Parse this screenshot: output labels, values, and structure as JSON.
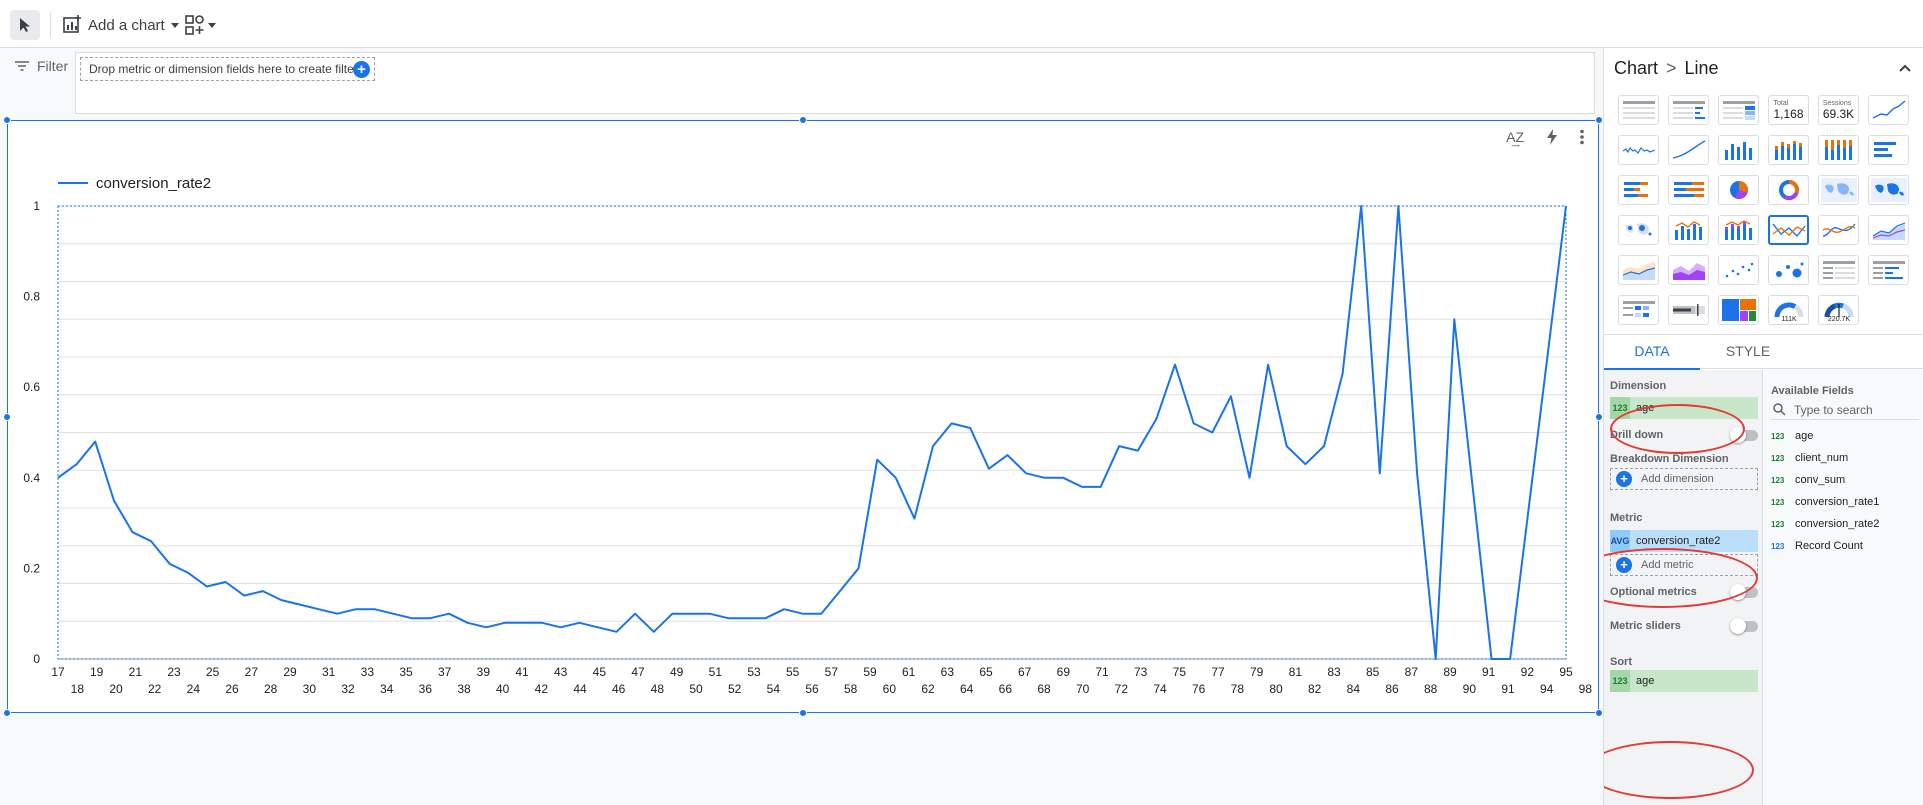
{
  "toolbar": {
    "add_chart_label": "Add a chart"
  },
  "filter": {
    "label": "Filter",
    "drop_hint": "Drop metric or dimension fields here to create filters"
  },
  "chart": {
    "sort_az_label": "A͢Z"
  },
  "chart_data": {
    "type": "line",
    "title": "",
    "series": [
      {
        "name": "conversion_rate2",
        "color": "#1a73e8",
        "x": [
          17,
          18,
          19,
          20,
          21,
          22,
          23,
          24,
          25,
          26,
          27,
          28,
          29,
          30,
          31,
          32,
          33,
          34,
          35,
          36,
          37,
          38,
          39,
          40,
          41,
          42,
          43,
          44,
          45,
          46,
          47,
          48,
          49,
          50,
          51,
          52,
          53,
          54,
          55,
          56,
          57,
          58,
          59,
          60,
          61,
          62,
          63,
          64,
          65,
          66,
          67,
          68,
          69,
          70,
          71,
          72,
          73,
          74,
          75,
          76,
          77,
          78,
          79,
          80,
          81,
          82,
          83,
          84,
          85,
          86,
          87,
          88,
          89,
          90,
          91,
          92,
          94,
          95,
          98
        ],
        "values": [
          0.4,
          0.43,
          0.48,
          0.35,
          0.28,
          0.26,
          0.21,
          0.19,
          0.16,
          0.17,
          0.14,
          0.15,
          0.13,
          0.12,
          0.11,
          0.1,
          0.11,
          0.11,
          0.1,
          0.09,
          0.09,
          0.1,
          0.08,
          0.07,
          0.08,
          0.08,
          0.08,
          0.07,
          0.08,
          0.07,
          0.06,
          0.1,
          0.06,
          0.1,
          0.1,
          0.1,
          0.09,
          0.09,
          0.09,
          0.11,
          0.1,
          0.1,
          0.15,
          0.2,
          0.44,
          0.4,
          0.31,
          0.47,
          0.52,
          0.51,
          0.42,
          0.45,
          0.41,
          0.4,
          0.4,
          0.38,
          0.38,
          0.47,
          0.46,
          0.53,
          0.65,
          0.52,
          0.5,
          0.58,
          0.4,
          0.65,
          0.47,
          0.43,
          0.47,
          0.63,
          1.0,
          0.41,
          1.0,
          0.41,
          0.0,
          0.75,
          0.0,
          0.0,
          1.0
        ]
      }
    ],
    "x_ticks_top": [
      "17",
      "19",
      "21",
      "23",
      "25",
      "27",
      "29",
      "31",
      "33",
      "35",
      "37",
      "39",
      "41",
      "43",
      "45",
      "47",
      "49",
      "51",
      "53",
      "55",
      "57",
      "59",
      "61",
      "63",
      "65",
      "67",
      "69",
      "71",
      "73",
      "75",
      "77",
      "79",
      "81",
      "83",
      "85",
      "87",
      "89",
      "91",
      "92",
      "95"
    ],
    "x_ticks_bottom": [
      "18",
      "20",
      "22",
      "24",
      "26",
      "28",
      "30",
      "32",
      "34",
      "36",
      "38",
      "40",
      "42",
      "44",
      "46",
      "48",
      "50",
      "52",
      "54",
      "56",
      "58",
      "60",
      "62",
      "64",
      "66",
      "68",
      "70",
      "72",
      "74",
      "76",
      "78",
      "80",
      "82",
      "84",
      "86",
      "88",
      "90",
      "91",
      "94",
      "98"
    ],
    "y_ticks": [
      "0",
      "0.2",
      "0.4",
      "0.6",
      "0.8",
      "1"
    ],
    "ylim": [
      0,
      1
    ],
    "grid": true,
    "legend_position": "top-left"
  },
  "panel": {
    "title_part1": "Chart",
    "title_sep": ">",
    "title_part2": "Line",
    "total_label": "Total",
    "total_value": "1,168",
    "sessions_label": "Sessions",
    "sessions_value": "69.3K",
    "gauge1_value": "111K",
    "gauge2_value": "220.7K",
    "tab_data": "DATA",
    "tab_style": "STYLE",
    "dimension_label": "Dimension",
    "dimension_type": "123",
    "dimension_field": "age",
    "drill_down_label": "Drill down",
    "breakdown_label": "Breakdown Dimension",
    "add_dimension_label": "Add dimension",
    "metric_label": "Metric",
    "metric_agg": "AVG",
    "metric_field": "conversion_rate2",
    "add_metric_label": "Add metric",
    "optional_metrics_label": "Optional metrics",
    "metric_sliders_label": "Metric sliders",
    "sort_label": "Sort",
    "sort_type": "123",
    "sort_field": "age",
    "available_fields_label": "Available Fields",
    "search_placeholder": "Type to search",
    "fields": [
      {
        "type": "123",
        "name": "age",
        "color": "#188038"
      },
      {
        "type": "123",
        "name": "client_num",
        "color": "#188038"
      },
      {
        "type": "123",
        "name": "conv_sum",
        "color": "#188038"
      },
      {
        "type": "123",
        "name": "conversion_rate1",
        "color": "#188038"
      },
      {
        "type": "123",
        "name": "conversion_rate2",
        "color": "#188038"
      },
      {
        "type": "123",
        "name": "Record Count",
        "color": "#1a73e8"
      }
    ]
  }
}
